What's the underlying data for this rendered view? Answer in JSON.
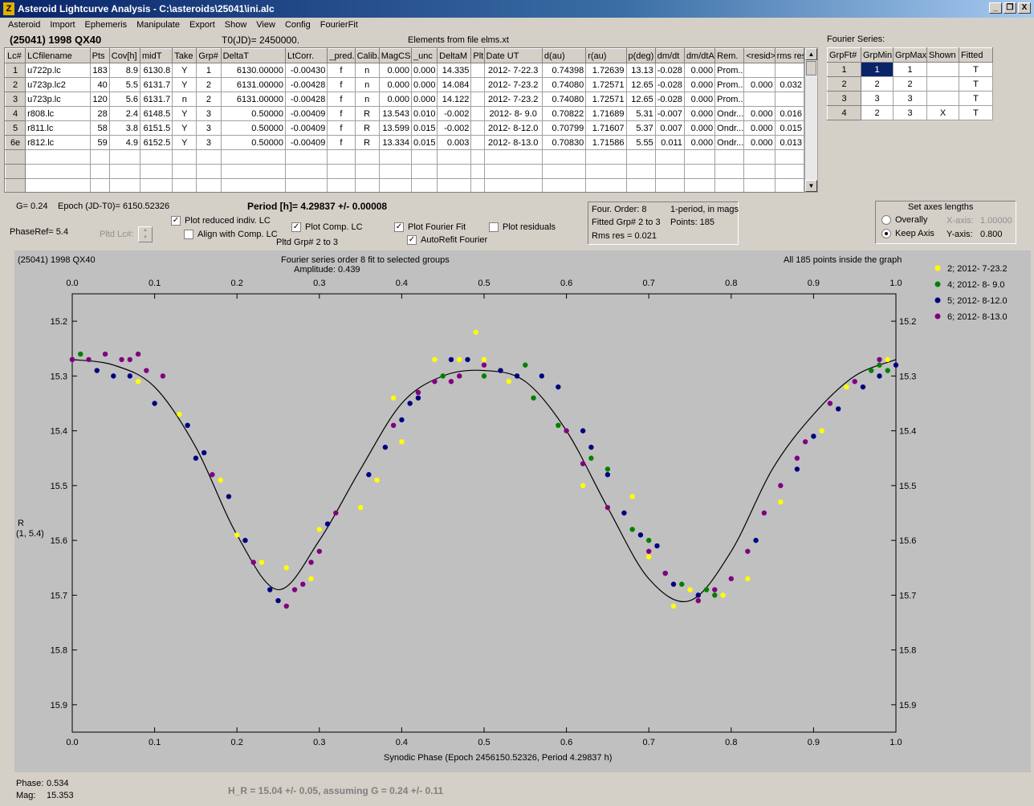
{
  "window": {
    "title": "Asteroid Lightcurve Analysis - C:\\asteroids\\25041\\ini.alc",
    "icon": "app-icon",
    "buttons": [
      "_",
      "❐",
      "X"
    ]
  },
  "menu": [
    "Asteroid",
    "Import",
    "Ephemeris",
    "Manipulate",
    "Export",
    "Show",
    "View",
    "Config",
    "FourierFit"
  ],
  "header": {
    "object": "(25041) 1998 QX40",
    "t0": "T0(JD)= 2450000.",
    "elements": "Elements from file elms.xt",
    "fourier_label": "Fourier Series:"
  },
  "lc_table": {
    "columns": [
      "Lc#",
      "LCfilename",
      "Pts",
      "Cov[h]",
      "midT",
      "Take",
      "Grp#",
      "DeltaT",
      "LtCorr.",
      "_pred.",
      "Calib.",
      "MagCS",
      "_unc",
      "DeltaM",
      "Plt",
      "Date UT",
      "d(au)",
      "r(au)",
      "p(deg)",
      "dm/dt",
      "dm/dtA",
      "Rem.",
      "<resid>",
      "rms res"
    ],
    "rows": [
      [
        "1",
        "u722p.lc",
        "183",
        "8.9",
        "6130.8",
        "Y",
        "1",
        "6130.00000",
        "-0.00430",
        "f",
        "n",
        "0.000",
        "0.000",
        "14.335",
        "",
        "2012- 7-22.3",
        "0.74398",
        "1.72639",
        "13.13",
        "-0.028",
        "0.000",
        "Prom...",
        "",
        ""
      ],
      [
        "2",
        "u723p.lc2",
        "40",
        "5.5",
        "6131.7",
        "Y",
        "2",
        "6131.00000",
        "-0.00428",
        "f",
        "n",
        "0.000",
        "0.000",
        "14.084",
        "",
        "2012- 7-23.2",
        "0.74080",
        "1.72571",
        "12.65",
        "-0.028",
        "0.000",
        "Prom...",
        "0.000",
        "0.032"
      ],
      [
        "3",
        "u723p.lc",
        "120",
        "5.6",
        "6131.7",
        "n",
        "2",
        "6131.00000",
        "-0.00428",
        "f",
        "n",
        "0.000",
        "0.000",
        "14.122",
        "",
        "2012- 7-23.2",
        "0.74080",
        "1.72571",
        "12.65",
        "-0.028",
        "0.000",
        "Prom...",
        "",
        ""
      ],
      [
        "4",
        "r808.lc",
        "28",
        "2.4",
        "6148.5",
        "Y",
        "3",
        "0.50000",
        "-0.00409",
        "f",
        "R",
        "13.543",
        "0.010",
        "-0.002",
        "",
        "2012- 8- 9.0",
        "0.70822",
        "1.71689",
        "5.31",
        "-0.007",
        "0.000",
        "Ondr...",
        "0.000",
        "0.016"
      ],
      [
        "5",
        "r811.lc",
        "58",
        "3.8",
        "6151.5",
        "Y",
        "3",
        "0.50000",
        "-0.00409",
        "f",
        "R",
        "13.599",
        "0.015",
        "-0.002",
        "",
        "2012- 8-12.0",
        "0.70799",
        "1.71607",
        "5.37",
        "0.007",
        "0.000",
        "Ondr...",
        "0.000",
        "0.015"
      ],
      [
        "6e",
        "r812.lc",
        "59",
        "4.9",
        "6152.5",
        "Y",
        "3",
        "0.50000",
        "-0.00409",
        "f",
        "R",
        "13.334",
        "0.015",
        "0.003",
        "",
        "2012- 8-13.0",
        "0.70830",
        "1.71586",
        "5.55",
        "0.011",
        "0.000",
        "Ondr...",
        "0.000",
        "0.013"
      ]
    ]
  },
  "fourier_table": {
    "columns": [
      "GrpFt#",
      "GrpMin",
      "GrpMax",
      "Shown",
      "Fitted"
    ],
    "rows": [
      [
        "1",
        "1",
        "1",
        "",
        "T"
      ],
      [
        "2",
        "2",
        "2",
        "",
        "T"
      ],
      [
        "3",
        "3",
        "3",
        "",
        "T"
      ],
      [
        "4",
        "2",
        "3",
        "X",
        "T"
      ]
    ]
  },
  "controls": {
    "g_value": "G= 0.24",
    "epoch": "Epoch (JD-T0)= 6150.52326",
    "period": "Period [h]= 4.29837 +/- 0.00008",
    "phaseref": "PhaseRef= 5.4",
    "pltd_lc": "Pltd Lc#:",
    "plot_reduced": "Plot reduced indiv. LC",
    "align_comp": "Align with Comp. LC",
    "plot_comp": "Plot Comp. LC",
    "pltd_grp": "Pltd Grp#  2   to   3",
    "plot_fourier": "Plot Fourier Fit",
    "autorefit": "AutoRefit Fourier",
    "plot_residuals": "Plot residuals",
    "checks": {
      "plot_reduced": true,
      "align_comp": false,
      "plot_comp": true,
      "plot_fourier": true,
      "autorefit": true,
      "plot_residuals": false
    }
  },
  "info_box": {
    "order": "Four. Order:  8",
    "mode": "1-period, in mags",
    "fitted": "Fitted Grp# 2 to 3",
    "points": "Points: 185",
    "rms": "Rms res     = 0.021"
  },
  "axes_box": {
    "title": "Set axes lengths",
    "overall": "Overally",
    "keep": "Keep Axis",
    "xaxis_label": "X-axis:",
    "xaxis_value": "1.00000",
    "yaxis_label": "Y-axis:",
    "yaxis_value": "0.800",
    "selected": "keep"
  },
  "plot": {
    "object": "(25041) 1998 QX40",
    "title": "Fourier series order 8 fit to selected groups",
    "amplitude": "Amplitude: 0.439",
    "points_note": "All 185 points inside the graph",
    "ylabel": "R",
    "ylabel2": "(1, 5.4)",
    "xlabel": "Synodic Phase (Epoch 2456150.52326, Period 4.29837 h)"
  },
  "chart_data": {
    "type": "scatter",
    "x_range": [
      0.0,
      1.0
    ],
    "y_range": [
      15.15,
      15.95
    ],
    "y_inverted": true,
    "xticks": [
      "0.0",
      "0.1",
      "0.2",
      "0.3",
      "0.4",
      "0.5",
      "0.6",
      "0.7",
      "0.8",
      "0.9",
      "1.0"
    ],
    "yticks": [
      "15.2",
      "15.3",
      "15.4",
      "15.5",
      "15.6",
      "15.7",
      "15.8",
      "15.9"
    ],
    "fit_curve": {
      "x": [
        0.0,
        0.05,
        0.1,
        0.15,
        0.2,
        0.25,
        0.3,
        0.35,
        0.4,
        0.45,
        0.5,
        0.55,
        0.6,
        0.65,
        0.7,
        0.75,
        0.8,
        0.85,
        0.9,
        0.95,
        1.0
      ],
      "y": [
        15.27,
        15.28,
        15.32,
        15.43,
        15.59,
        15.69,
        15.6,
        15.47,
        15.35,
        15.3,
        15.29,
        15.31,
        15.4,
        15.54,
        15.67,
        15.71,
        15.62,
        15.47,
        15.37,
        15.3,
        15.27
      ]
    },
    "series": [
      {
        "name": "2; 2012- 7-23.2",
        "color": "#ffff00",
        "x": [
          0.08,
          0.13,
          0.18,
          0.2,
          0.23,
          0.26,
          0.29,
          0.3,
          0.35,
          0.37,
          0.39,
          0.4,
          0.44,
          0.47,
          0.49,
          0.5,
          0.53,
          0.6,
          0.62,
          0.63,
          0.65,
          0.68,
          0.7,
          0.73,
          0.75,
          0.79,
          0.82,
          0.86,
          0.91,
          0.94,
          0.99
        ],
        "y": [
          15.31,
          15.37,
          15.49,
          15.59,
          15.64,
          15.65,
          15.67,
          15.58,
          15.54,
          15.49,
          15.34,
          15.42,
          15.27,
          15.27,
          15.22,
          15.27,
          15.31,
          15.4,
          15.5,
          15.45,
          15.54,
          15.52,
          15.63,
          15.72,
          15.69,
          15.7,
          15.67,
          15.53,
          15.4,
          15.32,
          15.27
        ]
      },
      {
        "name": "4; 2012- 8- 9.0",
        "color": "#008000",
        "x": [
          0.01,
          0.45,
          0.47,
          0.5,
          0.55,
          0.56,
          0.59,
          0.63,
          0.65,
          0.68,
          0.7,
          0.72,
          0.74,
          0.77,
          0.78,
          0.97,
          0.98,
          0.99
        ],
        "y": [
          15.26,
          15.3,
          15.3,
          15.3,
          15.28,
          15.34,
          15.39,
          15.45,
          15.47,
          15.58,
          15.6,
          15.66,
          15.68,
          15.69,
          15.7,
          15.29,
          15.28,
          15.29
        ]
      },
      {
        "name": "5; 2012- 8-12.0",
        "color": "#000080",
        "x": [
          0.0,
          0.03,
          0.05,
          0.07,
          0.1,
          0.14,
          0.15,
          0.16,
          0.19,
          0.21,
          0.24,
          0.25,
          0.31,
          0.36,
          0.38,
          0.4,
          0.41,
          0.42,
          0.46,
          0.48,
          0.52,
          0.54,
          0.57,
          0.59,
          0.62,
          0.63,
          0.65,
          0.67,
          0.69,
          0.71,
          0.73,
          0.76,
          0.83,
          0.88,
          0.9,
          0.93,
          0.96,
          0.98,
          1.0
        ],
        "y": [
          15.27,
          15.29,
          15.3,
          15.3,
          15.35,
          15.39,
          15.45,
          15.44,
          15.52,
          15.6,
          15.69,
          15.71,
          15.57,
          15.48,
          15.43,
          15.38,
          15.35,
          15.34,
          15.27,
          15.27,
          15.29,
          15.3,
          15.3,
          15.32,
          15.4,
          15.43,
          15.48,
          15.55,
          15.59,
          15.61,
          15.68,
          15.7,
          15.6,
          15.47,
          15.41,
          15.36,
          15.32,
          15.3,
          15.28
        ]
      },
      {
        "name": "6; 2012- 8-13.0",
        "color": "#800080",
        "x": [
          0.0,
          0.02,
          0.04,
          0.06,
          0.07,
          0.08,
          0.09,
          0.11,
          0.17,
          0.22,
          0.26,
          0.27,
          0.28,
          0.29,
          0.3,
          0.32,
          0.39,
          0.42,
          0.44,
          0.46,
          0.47,
          0.5,
          0.6,
          0.62,
          0.65,
          0.7,
          0.72,
          0.76,
          0.78,
          0.8,
          0.82,
          0.84,
          0.86,
          0.88,
          0.89,
          0.92,
          0.95,
          0.98
        ],
        "y": [
          15.27,
          15.27,
          15.26,
          15.27,
          15.27,
          15.26,
          15.29,
          15.3,
          15.48,
          15.64,
          15.72,
          15.69,
          15.68,
          15.64,
          15.62,
          15.55,
          15.39,
          15.33,
          15.31,
          15.31,
          15.3,
          15.28,
          15.4,
          15.46,
          15.54,
          15.62,
          15.66,
          15.71,
          15.69,
          15.67,
          15.62,
          15.55,
          15.5,
          15.45,
          15.42,
          15.35,
          15.31,
          15.27
        ]
      }
    ]
  },
  "footer": {
    "phase_label": "Phase:",
    "phase_value": "0.534",
    "mag_label": "Mag:",
    "mag_value": "15.353",
    "h_result": "H_R = 15.04 +/- 0.05, assuming G = 0.24 +/- 0.11"
  }
}
